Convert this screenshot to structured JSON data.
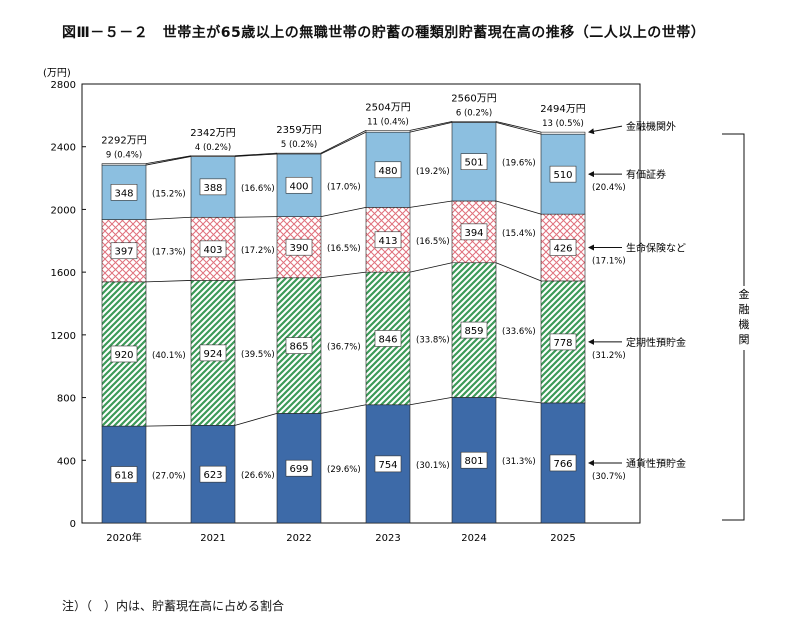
{
  "title": "図Ⅲ－５－２　世帯主が65歳以上の無職世帯の貯蓄の種類別貯蓄現在高の推移（二人以上の世帯）",
  "note": "注）（　）内は、貯蓄現在高に占める割合",
  "chart_data": {
    "type": "bar",
    "stacked": true,
    "unit": "(万円)",
    "ylim": [
      0,
      2800
    ],
    "yticks": [
      "0",
      "400",
      "800",
      "1200",
      "1600",
      "2000",
      "2400",
      "2800"
    ],
    "categories": [
      "2020年",
      "2021",
      "2022",
      "2023",
      "2024",
      "2025"
    ],
    "totals": [
      "2292万円",
      "2342万円",
      "2359万円",
      "2504万円",
      "2560万円",
      "2494万円"
    ],
    "series": [
      {
        "name": "通貨性預貯金",
        "values": [
          618,
          623,
          699,
          754,
          801,
          766
        ],
        "shares": [
          "(27.0%)",
          "(26.6%)",
          "(29.6%)",
          "(30.1%)",
          "(31.3%)",
          "(30.7%)"
        ],
        "color": "#3d6aa8",
        "pattern": "solid"
      },
      {
        "name": "定期性預貯金",
        "values": [
          920,
          924,
          865,
          846,
          859,
          778
        ],
        "shares": [
          "(40.1%)",
          "(39.5%)",
          "(36.7%)",
          "(33.8%)",
          "(33.6%)",
          "(31.2%)"
        ],
        "color": "#3c9a58",
        "pattern": "diagonal"
      },
      {
        "name": "生命保険など",
        "values": [
          397,
          403,
          390,
          413,
          394,
          426
        ],
        "shares": [
          "(17.3%)",
          "(17.2%)",
          "(16.5%)",
          "(16.5%)",
          "(15.4%)",
          "(17.1%)"
        ],
        "color": "#e0707c",
        "pattern": "crosshatch"
      },
      {
        "name": "有価証券",
        "values": [
          348,
          388,
          400,
          480,
          501,
          510
        ],
        "shares": [
          "(15.2%)",
          "(16.6%)",
          "(17.0%)",
          "(19.2%)",
          "(19.6%)",
          "(20.4%)"
        ],
        "color": "#8cbfe0",
        "pattern": "solid"
      },
      {
        "name": "金融機関外",
        "values": [
          9,
          4,
          5,
          11,
          6,
          13
        ],
        "shares": [
          "(0.4%)",
          "(0.2%)",
          "(0.2%)",
          "(0.4%)",
          "(0.2%)",
          "(0.5%)"
        ],
        "color": "#ffffff",
        "pattern": "solid"
      }
    ],
    "legend_labels": [
      "金融機関外",
      "有価証券",
      "生命保険など",
      "定期性預貯金",
      "通貨性預貯金"
    ],
    "legend_share": "(20.4%)",
    "bracket_label": [
      "金",
      "融",
      "機",
      "関"
    ],
    "legend_placement": "right",
    "grid": false
  }
}
